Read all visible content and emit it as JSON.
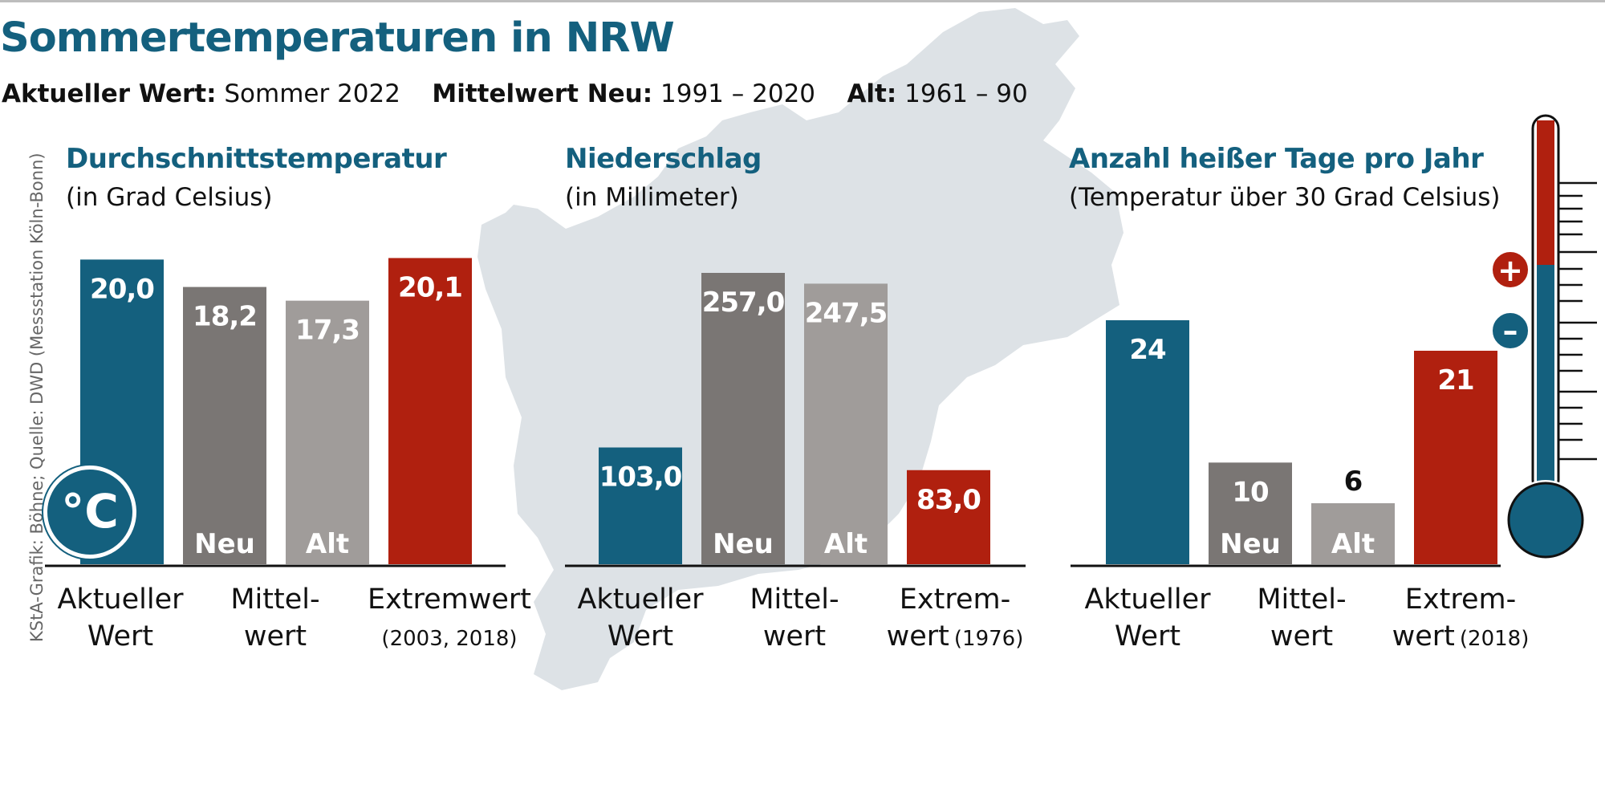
{
  "header": {
    "title": "Sommertemperaturen in NRW",
    "subtitle": {
      "current_label": "Aktueller Wert:",
      "current_value": "Sommer 2022",
      "mean_new_label": "Mittelwert Neu:",
      "mean_new_value": "1991 – 2020",
      "mean_old_label": "Alt:",
      "mean_old_value": "1961 – 90"
    }
  },
  "source": "KStA-Grafik: Böhne; Quelle: DWD (Messstation Köln-Bonn)",
  "icons": {
    "celsius_badge": "°C",
    "thermometer": "thermometer-icon",
    "plus": "+",
    "minus": "–"
  },
  "colors": {
    "blue": "#14607e",
    "dark_grey": "#7a7674",
    "light_grey": "#a09c9a",
    "red": "#b0200f",
    "map": "#dde2e6"
  },
  "chart_data": [
    {
      "type": "bar",
      "title": "Durchschnittstemperatur",
      "unit": "(in Grad Celsius)",
      "categories": [
        "Aktueller Wert",
        "Mittelwert Neu",
        "Mittelwert Alt",
        "Extremwert (2003, 2018)"
      ],
      "values": [
        20.0,
        18.2,
        17.3,
        20.1
      ],
      "value_labels": [
        "20,0",
        "18,2",
        "17,3",
        "20,1"
      ],
      "bar_tags": [
        "",
        "Neu",
        "Alt",
        ""
      ],
      "ylim": [
        0,
        20.6
      ],
      "x_labels": [
        {
          "lines": [
            "Aktueller",
            "Wert"
          ]
        },
        {
          "lines": [
            "Mittel-",
            "wert"
          ]
        },
        {
          "lines": [
            "Extremwert"
          ],
          "small": "(2003, 2018)"
        }
      ]
    },
    {
      "type": "bar",
      "title": "Niederschlag",
      "unit": "(in Millimeter)",
      "categories": [
        "Aktueller Wert",
        "Mittelwert Neu",
        "Mittelwert Alt",
        "Extremwert (1976)"
      ],
      "values": [
        103.0,
        257.0,
        247.5,
        83.0
      ],
      "value_labels": [
        "103,0",
        "257,0",
        "247,5",
        "83,0"
      ],
      "bar_tags": [
        "",
        "Neu",
        "Alt",
        ""
      ],
      "ylim": [
        0,
        257
      ],
      "x_labels": [
        {
          "lines": [
            "Aktueller",
            "Wert"
          ]
        },
        {
          "lines": [
            "Mittel-",
            "wert"
          ]
        },
        {
          "lines": [
            "Extrem-",
            "wert"
          ],
          "small": "(1976)"
        }
      ]
    },
    {
      "type": "bar",
      "title": "Anzahl heißer Tage pro Jahr",
      "unit": "(Temperatur über 30 Grad Celsius)",
      "categories": [
        "Aktueller Wert",
        "Mittelwert Neu",
        "Mittelwert Alt",
        "Extremwert (2018)"
      ],
      "values": [
        24,
        10,
        6,
        21
      ],
      "value_labels": [
        "24",
        "10",
        "6",
        "21"
      ],
      "bar_tags": [
        "",
        "Neu",
        "Alt",
        ""
      ],
      "ylim": [
        0,
        25.5
      ],
      "x_labels": [
        {
          "lines": [
            "Aktueller",
            "Wert"
          ]
        },
        {
          "lines": [
            "Mittel-",
            "wert"
          ]
        },
        {
          "lines": [
            "Extrem-",
            "wert"
          ],
          "small": "(2018)"
        }
      ]
    }
  ]
}
